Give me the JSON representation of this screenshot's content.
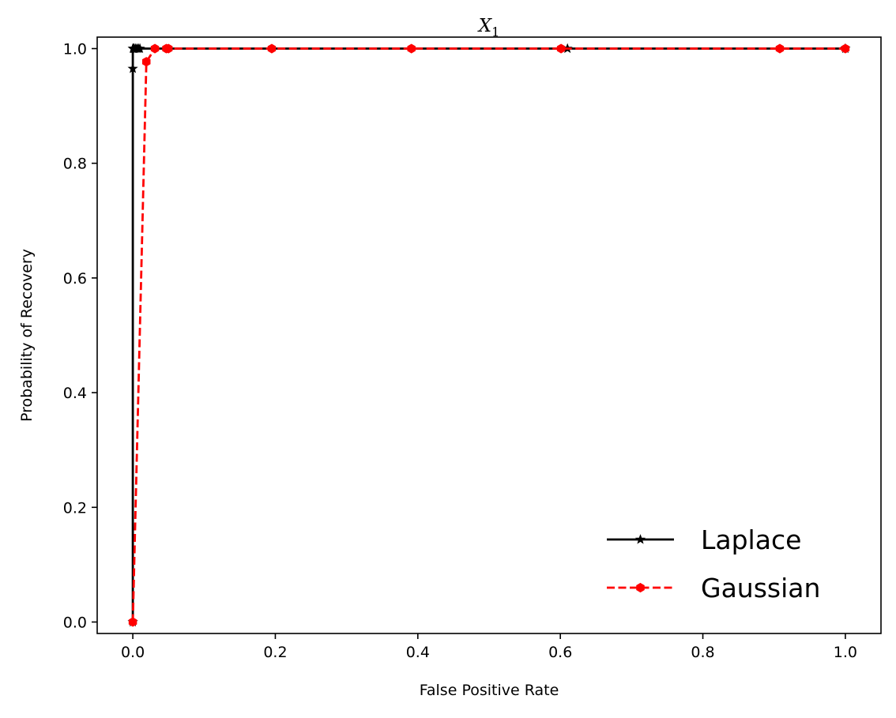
{
  "chart_data": {
    "type": "line",
    "title_main": "X",
    "title_sub": "1",
    "xlabel": "False Positive Rate",
    "ylabel": "Probability of Recovery",
    "xlim": [
      -0.05,
      1.05
    ],
    "ylim": [
      -0.02,
      1.02
    ],
    "xticks": [
      0.0,
      0.2,
      0.4,
      0.6,
      0.8,
      1.0
    ],
    "xtick_labels": [
      "0.0",
      "0.2",
      "0.4",
      "0.6",
      "0.8",
      "1.0"
    ],
    "yticks": [
      0.0,
      0.2,
      0.4,
      0.6,
      0.8,
      1.0
    ],
    "ytick_labels": [
      "0.0",
      "0.2",
      "0.4",
      "0.6",
      "0.8",
      "1.0"
    ],
    "legend_position": "lower-right",
    "series": [
      {
        "name": "Laplace",
        "color": "#000000",
        "linestyle": "solid",
        "marker": "star",
        "x": [
          0.0,
          0.0,
          0.0,
          0.001,
          0.002,
          0.004,
          0.006,
          0.008,
          0.01,
          0.61,
          1.0
        ],
        "y": [
          0.0,
          0.965,
          1.0,
          1.0,
          1.0,
          1.0,
          1.0,
          1.0,
          1.0,
          1.0,
          1.0
        ]
      },
      {
        "name": "Gaussian",
        "color": "#ff0000",
        "linestyle": "dashed",
        "marker": "hexagon",
        "x": [
          0.0,
          0.019,
          0.031,
          0.047,
          0.05,
          0.195,
          0.391,
          0.601,
          0.908,
          1.0
        ],
        "y": [
          0.0,
          0.977,
          1.0,
          1.0,
          1.0,
          1.0,
          1.0,
          1.0,
          1.0,
          1.0
        ]
      }
    ]
  }
}
